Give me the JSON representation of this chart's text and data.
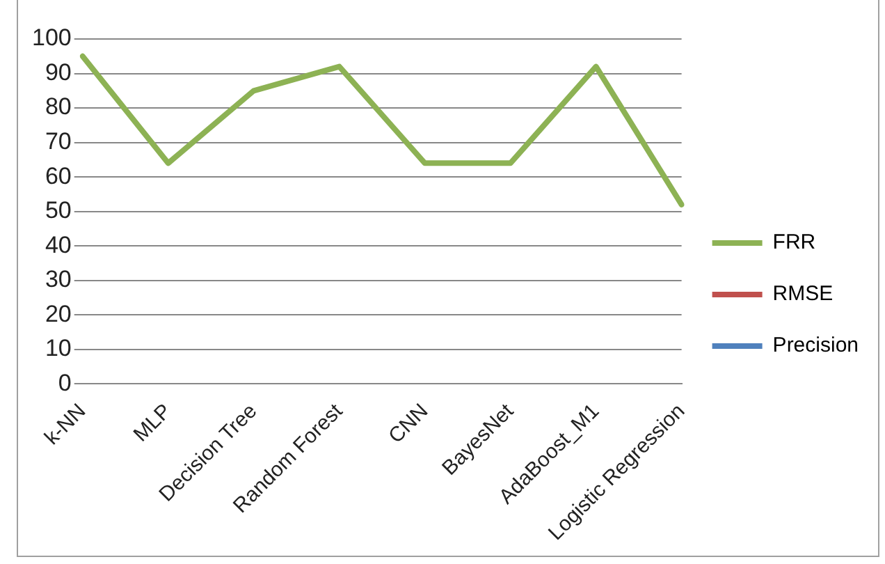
{
  "chart_data": {
    "type": "line",
    "categories": [
      "k-NN",
      "MLP",
      "Decision Tree",
      "Random Forest",
      "CNN",
      "BayesNet",
      "AdaBoost_M1",
      "Logistic Regression"
    ],
    "series": [
      {
        "name": "FRR",
        "color": "#8db254",
        "values": [
          95,
          64,
          85,
          92,
          64,
          64,
          92,
          52
        ]
      },
      {
        "name": "RMSE",
        "color": "#c0504d",
        "values": [
          null,
          null,
          null,
          null,
          null,
          null,
          null,
          null
        ]
      },
      {
        "name": "Precision",
        "color": "#4f81bd",
        "values": [
          null,
          null,
          null,
          null,
          null,
          null,
          null,
          null
        ]
      }
    ],
    "ylim": [
      0,
      100
    ],
    "yticks": [
      0,
      10,
      20,
      30,
      40,
      50,
      60,
      70,
      80,
      90,
      100
    ],
    "grid": "y",
    "legend": "right",
    "marker": "none"
  }
}
